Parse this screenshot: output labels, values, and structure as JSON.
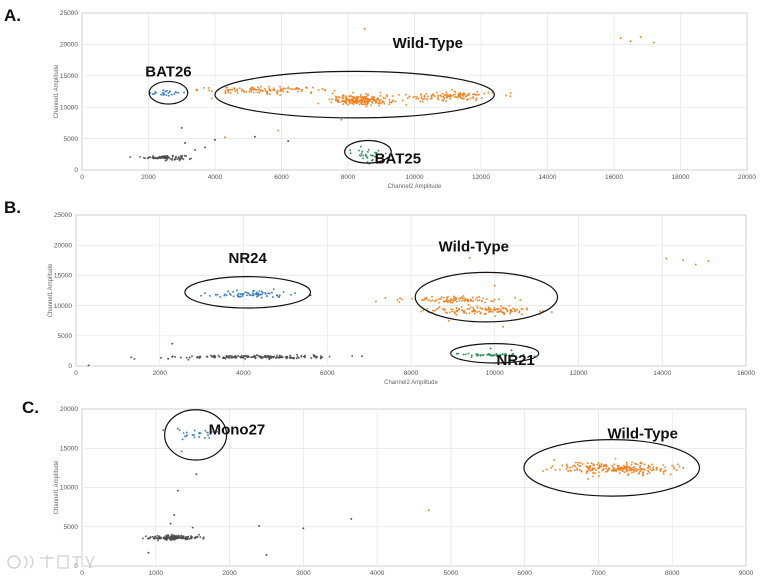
{
  "chart_data": [
    {
      "type": "scatter",
      "panel_label": "A.",
      "xlabel": "Channel2 Amplitude",
      "ylabel": "Channel1 Amplitude",
      "xlim": [
        0,
        20000
      ],
      "ylim": [
        0,
        25000
      ],
      "xticks": [
        0,
        2000,
        4000,
        6000,
        8000,
        10000,
        12000,
        14000,
        16000,
        18000,
        20000
      ],
      "yticks": [
        0,
        5000,
        10000,
        15000,
        20000,
        25000
      ],
      "grid": true,
      "colors": {
        "negative": "#4d4d4d",
        "wildtype": "#f07f1e",
        "marker1": "#2e78b7",
        "marker2": "#1f8a4c"
      },
      "clusters": [
        {
          "group": "negative",
          "x_center": 2500,
          "y_center": 2000,
          "x_spread": 300,
          "y_spread": 180,
          "count": 90
        },
        {
          "group": "marker1",
          "x_center": 2500,
          "y_center": 12300,
          "x_spread": 280,
          "y_spread": 250,
          "count": 24
        },
        {
          "group": "wildtype",
          "x_center": 5500,
          "y_center": 12700,
          "x_spread": 1000,
          "y_spread": 250,
          "count": 110
        },
        {
          "group": "wildtype",
          "x_center": 8400,
          "y_center": 11100,
          "x_spread": 450,
          "y_spread": 400,
          "count": 200
        },
        {
          "group": "wildtype",
          "x_center": 11000,
          "y_center": 11800,
          "x_spread": 700,
          "y_spread": 400,
          "count": 120
        },
        {
          "group": "marker2",
          "x_center": 8600,
          "y_center": 2500,
          "x_spread": 320,
          "y_spread": 600,
          "count": 35
        }
      ],
      "scattered_points": [
        {
          "group": "wildtype",
          "x": 8500,
          "y": 22500
        },
        {
          "group": "wildtype",
          "x": 16200,
          "y": 21000
        },
        {
          "group": "wildtype",
          "x": 16500,
          "y": 20500
        },
        {
          "group": "wildtype",
          "x": 17200,
          "y": 20300
        },
        {
          "group": "wildtype",
          "x": 16800,
          "y": 21200
        },
        {
          "group": "wildtype",
          "x": 4300,
          "y": 5200
        },
        {
          "group": "wildtype",
          "x": 5900,
          "y": 6300
        },
        {
          "group": "wildtype",
          "x": 7800,
          "y": 8000
        },
        {
          "group": "wildtype",
          "x": 3900,
          "y": 11400
        },
        {
          "group": "negative",
          "x": 3000,
          "y": 6700
        },
        {
          "group": "negative",
          "x": 3400,
          "y": 3200
        },
        {
          "group": "negative",
          "x": 4000,
          "y": 4800
        },
        {
          "group": "negative",
          "x": 5200,
          "y": 5300
        },
        {
          "group": "negative",
          "x": 3100,
          "y": 4300
        },
        {
          "group": "negative",
          "x": 6200,
          "y": 4600
        },
        {
          "group": "negative",
          "x": 3700,
          "y": 3600
        }
      ],
      "annotations": [
        {
          "text": "BAT26",
          "x": 2600,
          "y": 15700,
          "ellipse": {
            "cx": 2600,
            "cy": 12300,
            "rx": 580,
            "ry": 1800
          }
        },
        {
          "text": "Wild-Type",
          "x": 10400,
          "y": 20200,
          "ellipse": {
            "cx": 8200,
            "cy": 12000,
            "rx": 4200,
            "ry": 3700
          }
        },
        {
          "text": "BAT25",
          "x": 9500,
          "y": 1800,
          "ellipse": {
            "cx": 8600,
            "cy": 2900,
            "rx": 700,
            "ry": 1800
          }
        }
      ]
    },
    {
      "type": "scatter",
      "panel_label": "B.",
      "xlabel": "Channel2 Amplitude",
      "ylabel": "Channel1 Amplitude",
      "xlim": [
        0,
        16000
      ],
      "ylim": [
        0,
        25000
      ],
      "xticks": [
        0,
        2000,
        4000,
        6000,
        8000,
        10000,
        12000,
        14000,
        16000
      ],
      "yticks": [
        0,
        5000,
        10000,
        15000,
        20000,
        25000
      ],
      "grid": true,
      "colors": {
        "negative": "#4d4d4d",
        "wildtype": "#f07f1e",
        "marker1": "#2e78b7",
        "marker2": "#1f8a4c"
      },
      "clusters": [
        {
          "group": "negative",
          "x_center": 4300,
          "y_center": 1500,
          "x_spread": 900,
          "y_spread": 150,
          "count": 170
        },
        {
          "group": "marker1",
          "x_center": 4100,
          "y_center": 11900,
          "x_spread": 500,
          "y_spread": 300,
          "count": 70
        },
        {
          "group": "wildtype",
          "x_center": 9000,
          "y_center": 11000,
          "x_spread": 600,
          "y_spread": 300,
          "count": 90
        },
        {
          "group": "wildtype",
          "x_center": 9700,
          "y_center": 9200,
          "x_spread": 700,
          "y_spread": 300,
          "count": 130
        },
        {
          "group": "marker2",
          "x_center": 9800,
          "y_center": 1800,
          "x_spread": 450,
          "y_spread": 150,
          "count": 50
        }
      ],
      "scattered_points": [
        {
          "group": "wildtype",
          "x": 14100,
          "y": 17800
        },
        {
          "group": "wildtype",
          "x": 14500,
          "y": 17500
        },
        {
          "group": "wildtype",
          "x": 14800,
          "y": 16800
        },
        {
          "group": "wildtype",
          "x": 15100,
          "y": 17400
        },
        {
          "group": "wildtype",
          "x": 8900,
          "y": 7500
        },
        {
          "group": "wildtype",
          "x": 10200,
          "y": 6500
        },
        {
          "group": "wildtype",
          "x": 10000,
          "y": 13300
        },
        {
          "group": "wildtype",
          "x": 9400,
          "y": 17900
        },
        {
          "group": "negative",
          "x": 300,
          "y": 100
        },
        {
          "group": "negative",
          "x": 2200,
          "y": 1200
        },
        {
          "group": "negative",
          "x": 2300,
          "y": 3700
        },
        {
          "group": "negative",
          "x": 5600,
          "y": 11700
        },
        {
          "group": "negative",
          "x": 4800,
          "y": 11700
        },
        {
          "group": "marker2",
          "x": 9900,
          "y": 2900
        },
        {
          "group": "marker2",
          "x": 10400,
          "y": 2600
        }
      ],
      "annotations": [
        {
          "text": "NR24",
          "x": 4100,
          "y": 17900,
          "ellipse": {
            "cx": 4100,
            "cy": 12200,
            "rx": 1500,
            "ry": 2600
          }
        },
        {
          "text": "Wild-Type",
          "x": 9500,
          "y": 19800,
          "ellipse": {
            "cx": 9800,
            "cy": 11400,
            "rx": 1700,
            "ry": 4100
          }
        },
        {
          "text": "NR21",
          "x": 10500,
          "y": 1000,
          "ellipse": {
            "cx": 10000,
            "cy": 2100,
            "rx": 1050,
            "ry": 1600
          }
        }
      ]
    },
    {
      "type": "scatter",
      "panel_label": "C.",
      "xlabel": "",
      "ylabel": "Channel1 Amplitude",
      "xlim": [
        0,
        9000
      ],
      "ylim": [
        0,
        20000
      ],
      "xticks": [
        0,
        1000,
        2000,
        3000,
        4000,
        5000,
        6000,
        7000,
        8000,
        9000
      ],
      "yticks": [
        0,
        5000,
        10000,
        15000,
        20000
      ],
      "grid": true,
      "colors": {
        "negative": "#4d4d4d",
        "wildtype": "#f07f1e",
        "marker1": "#2e78b7",
        "marker2": "#1f8a4c"
      },
      "clusters": [
        {
          "group": "negative",
          "x_center": 1250,
          "y_center": 3600,
          "x_spread": 180,
          "y_spread": 150,
          "count": 150
        },
        {
          "group": "marker1",
          "x_center": 1550,
          "y_center": 16900,
          "x_spread": 180,
          "y_spread": 350,
          "count": 24
        },
        {
          "group": "wildtype",
          "x_center": 7250,
          "y_center": 12400,
          "x_spread": 380,
          "y_spread": 400,
          "count": 230
        }
      ],
      "scattered_points": [
        {
          "group": "negative",
          "x": 1300,
          "y": 9600
        },
        {
          "group": "negative",
          "x": 1250,
          "y": 6500
        },
        {
          "group": "negative",
          "x": 1200,
          "y": 5400
        },
        {
          "group": "negative",
          "x": 2400,
          "y": 5100
        },
        {
          "group": "negative",
          "x": 3000,
          "y": 4800
        },
        {
          "group": "negative",
          "x": 3650,
          "y": 6000
        },
        {
          "group": "negative",
          "x": 1500,
          "y": 4900
        },
        {
          "group": "negative",
          "x": 900,
          "y": 1700
        },
        {
          "group": "negative",
          "x": 1550,
          "y": 11700
        },
        {
          "group": "negative",
          "x": 2500,
          "y": 1400
        },
        {
          "group": "wildtype",
          "x": 4700,
          "y": 7100
        },
        {
          "group": "wildtype",
          "x": 6400,
          "y": 13500
        },
        {
          "group": "wildtype",
          "x": 6300,
          "y": 12300
        },
        {
          "group": "wildtype",
          "x": 8150,
          "y": 12500
        },
        {
          "group": "marker1",
          "x": 1350,
          "y": 14600
        },
        {
          "group": "marker1",
          "x": 1100,
          "y": 17300
        }
      ],
      "annotations": [
        {
          "text": "Mono27",
          "x": 2100,
          "y": 17400,
          "ellipse": {
            "cx": 1540,
            "cy": 16700,
            "rx": 420,
            "ry": 3200
          }
        },
        {
          "text": "Wild-Type",
          "x": 7600,
          "y": 16900,
          "ellipse": {
            "cx": 7180,
            "cy": 12500,
            "rx": 1190,
            "ry": 3600
          }
        }
      ]
    }
  ]
}
